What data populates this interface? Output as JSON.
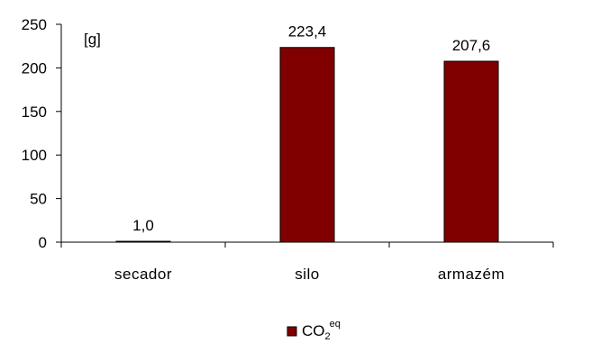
{
  "chart_data": {
    "type": "bar",
    "categories": [
      "secador",
      "silo",
      "armazém"
    ],
    "series": [
      {
        "name": "CO2eq",
        "values": [
          1.0,
          223.4,
          207.6
        ],
        "data_labels": [
          "1,0",
          "223,4",
          "207,6"
        ]
      }
    ],
    "ylim": [
      0,
      250
    ],
    "yticks": [
      0,
      50,
      100,
      150,
      200,
      250
    ],
    "ytick_labels": [
      "0",
      "50",
      "100",
      "150",
      "200",
      "250"
    ],
    "unit_label": "[g]",
    "legend": {
      "position": "bottom",
      "base": "CO",
      "subscript": "2",
      "superscript": "eq"
    },
    "grid": false,
    "colors": {
      "bar": "#800000",
      "bar_edge": "#000000",
      "axis": "#000000"
    }
  }
}
